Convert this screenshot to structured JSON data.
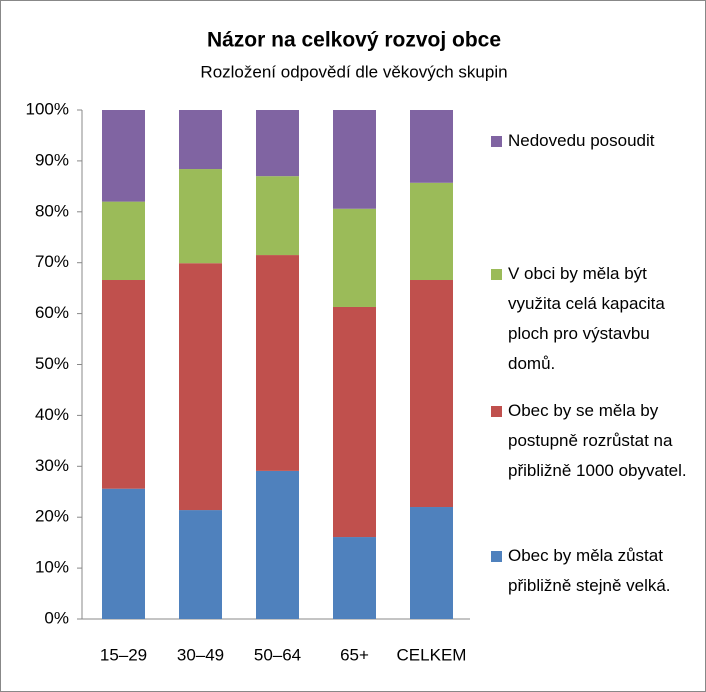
{
  "chart_data": {
    "type": "stacked_bar_100",
    "title": "Názor na celkový rozvoj obce",
    "subtitle": "Rozložení odpovědí dle věkových skupin",
    "categories": [
      "15–29",
      "30–49",
      "50–64",
      "65+",
      "CELKEM"
    ],
    "series": [
      {
        "name": "Obec by měla zůstat přibližně stejně velká.",
        "color": "#4f81bd",
        "values": [
          25.6,
          21.4,
          29.1,
          16.1,
          22.0
        ]
      },
      {
        "name": "Obec by se měla by postupně rozrůstat na přibližně 1000 obyvatel.",
        "color": "#c0504d",
        "values": [
          41.0,
          48.5,
          42.4,
          45.2,
          44.6
        ]
      },
      {
        "name": "V obci by měla být využita celá kapacita ploch pro výstavbu domů.",
        "color": "#9bbb59",
        "values": [
          15.4,
          18.5,
          15.5,
          19.3,
          19.1
        ]
      },
      {
        "name": "Nedovedu posoudit",
        "color": "#8064a2",
        "values": [
          18.0,
          11.6,
          13.0,
          19.4,
          14.3
        ]
      }
    ],
    "ylim": [
      0,
      100
    ],
    "yticks": [
      {
        "value": 0,
        "label": "0%"
      },
      {
        "value": 10,
        "label": "10%"
      },
      {
        "value": 20,
        "label": "20%"
      },
      {
        "value": 30,
        "label": "30%"
      },
      {
        "value": 40,
        "label": "40%"
      },
      {
        "value": 50,
        "label": "50%"
      },
      {
        "value": 60,
        "label": "60%"
      },
      {
        "value": 70,
        "label": "70%"
      },
      {
        "value": 80,
        "label": "80%"
      },
      {
        "value": 90,
        "label": "90%"
      },
      {
        "value": 100,
        "label": "100%"
      }
    ],
    "grid": false,
    "legend": "right"
  }
}
